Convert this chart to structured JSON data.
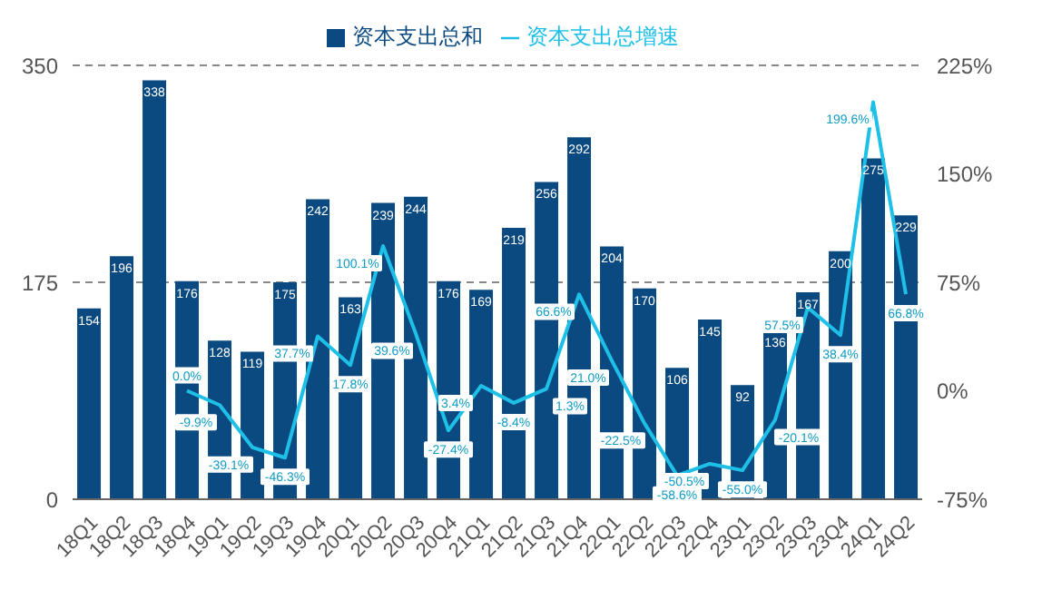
{
  "chart_data": {
    "type": "bar",
    "categories": [
      "18Q1",
      "18Q2",
      "18Q3",
      "18Q4",
      "19Q1",
      "19Q2",
      "19Q3",
      "19Q4",
      "20Q1",
      "20Q2",
      "20Q3",
      "20Q4",
      "21Q1",
      "21Q2",
      "21Q3",
      "21Q4",
      "22Q1",
      "22Q2",
      "22Q3",
      "22Q4",
      "23Q1",
      "23Q2",
      "23Q3",
      "23Q4",
      "24Q1",
      "24Q2"
    ],
    "series": [
      {
        "name": "资本支出总和",
        "color": "#0b4a80",
        "values": [
          154,
          196,
          338,
          176,
          128,
          119,
          175,
          242,
          163,
          239,
          244,
          176,
          169,
          219,
          256,
          292,
          204,
          170,
          106,
          145,
          92,
          136,
          167,
          200,
          275,
          229
        ],
        "value_labels": [
          "154",
          "196",
          "338",
          "176",
          "128",
          "119",
          "175",
          "242",
          "163",
          "239",
          "244",
          "176",
          "169",
          "219",
          "256",
          "292",
          "204",
          "170",
          "106",
          "145",
          "92",
          "136",
          "167",
          "200",
          "275",
          "229"
        ]
      },
      {
        "name": "资本支出总增速",
        "type": "line",
        "axis": "y2",
        "color": "#1ec0e8",
        "values": [
          null,
          null,
          null,
          0.0,
          -9.9,
          -39.1,
          -46.3,
          37.7,
          17.8,
          100.1,
          39.6,
          -27.4,
          3.4,
          -8.4,
          1.3,
          66.6,
          21.0,
          -22.5,
          -58.6,
          -50.5,
          -55.0,
          -20.1,
          57.5,
          38.4,
          199.6,
          66.8
        ],
        "value_labels": [
          null,
          null,
          null,
          "0.0%",
          "-9.9%",
          "-39.1%",
          "-46.3%",
          "37.7%",
          "17.8%",
          "100.1%",
          "39.6%",
          "-27.4%",
          "3.4%",
          "-8.4%",
          "1.3%",
          "66.6%",
          "21.0%",
          "-22.5%",
          "-58.6%",
          "-50.5%",
          "-55.0%",
          "-20.1%",
          "57.5%",
          "38.4%",
          "199.6%",
          "66.8%"
        ]
      }
    ],
    "ylim": [
      0,
      350
    ],
    "yticks": [
      0,
      175,
      350
    ],
    "y2lim": [
      -75,
      225
    ],
    "y2ticks": [
      {
        "value": -75,
        "label": "-75%"
      },
      {
        "value": 0,
        "label": "0%"
      },
      {
        "value": 75,
        "label": "75%"
      },
      {
        "value": 150,
        "label": "150%"
      },
      {
        "value": 225,
        "label": "225%"
      }
    ],
    "grid": "y",
    "legend": "top",
    "marker": "none"
  }
}
